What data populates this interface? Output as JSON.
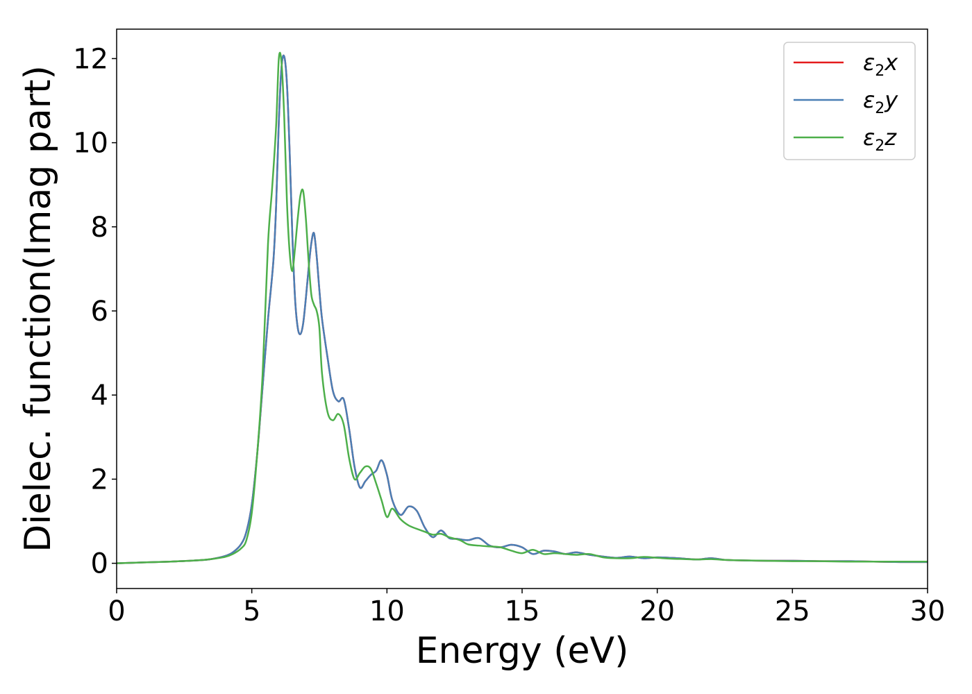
{
  "chart_data": {
    "type": "line",
    "title": "",
    "xlabel": "Energy (eV)",
    "ylabel": "Dielec. function(Imag part)",
    "xlim": [
      0,
      30
    ],
    "ylim": [
      -0.6,
      12.7
    ],
    "xticks": [
      0,
      5,
      10,
      15,
      20,
      25,
      30
    ],
    "xtick_labels": [
      "0",
      "5",
      "10",
      "15",
      "20",
      "25",
      "30"
    ],
    "yticks": [
      0,
      2,
      4,
      6,
      8,
      10,
      12
    ],
    "ytick_labels": [
      "0",
      "2",
      "4",
      "6",
      "8",
      "10",
      "12"
    ],
    "grid": false,
    "legend_position": "top-right",
    "series": [
      {
        "name": "ε2x",
        "legend_symbol": "ε",
        "legend_sub": "2",
        "legend_suffix": "x",
        "color": "#e41a1c",
        "x": [
          0,
          1,
          2,
          3,
          3.5,
          4,
          4.3,
          4.6,
          4.8,
          5.0,
          5.2,
          5.4,
          5.6,
          5.8,
          5.9,
          6.0,
          6.1,
          6.2,
          6.3,
          6.4,
          6.5,
          6.6,
          6.7,
          6.8,
          6.9,
          7.0,
          7.1,
          7.2,
          7.3,
          7.4,
          7.5,
          7.6,
          7.8,
          8.0,
          8.2,
          8.4,
          8.6,
          8.8,
          9.0,
          9.2,
          9.4,
          9.6,
          9.8,
          10.0,
          10.2,
          10.5,
          10.8,
          11.1,
          11.4,
          11.7,
          12.0,
          12.3,
          12.6,
          13.0,
          13.4,
          13.8,
          14.2,
          14.6,
          15.0,
          15.4,
          15.8,
          16.2,
          16.6,
          17.0,
          17.5,
          18.0,
          18.5,
          19.0,
          19.5,
          20.0,
          20.5,
          21.0,
          21.5,
          22.0,
          22.5,
          23.0,
          24.0,
          25.0,
          26.0,
          27.0,
          28.0,
          29.0,
          30.0
        ],
        "y": [
          0.0,
          0.02,
          0.04,
          0.07,
          0.1,
          0.17,
          0.26,
          0.45,
          0.75,
          1.4,
          2.6,
          4.2,
          5.8,
          7.2,
          8.5,
          10.5,
          11.8,
          12.05,
          11.4,
          9.8,
          7.8,
          6.3,
          5.6,
          5.45,
          5.7,
          6.3,
          7.0,
          7.6,
          7.85,
          7.3,
          6.5,
          5.8,
          4.9,
          4.1,
          3.85,
          3.9,
          3.2,
          2.3,
          1.8,
          1.95,
          2.1,
          2.2,
          2.45,
          2.1,
          1.5,
          1.15,
          1.35,
          1.25,
          0.85,
          0.62,
          0.78,
          0.6,
          0.58,
          0.55,
          0.6,
          0.42,
          0.38,
          0.44,
          0.38,
          0.22,
          0.3,
          0.28,
          0.22,
          0.26,
          0.2,
          0.16,
          0.13,
          0.16,
          0.12,
          0.14,
          0.13,
          0.11,
          0.09,
          0.12,
          0.08,
          0.07,
          0.06,
          0.06,
          0.05,
          0.05,
          0.04,
          0.03,
          0.03
        ]
      },
      {
        "name": "ε2y",
        "legend_symbol": "ε",
        "legend_sub": "2",
        "legend_suffix": "y",
        "color": "#4a7fb5",
        "x": [
          0,
          1,
          2,
          3,
          3.5,
          4,
          4.3,
          4.6,
          4.8,
          5.0,
          5.2,
          5.4,
          5.6,
          5.8,
          5.9,
          6.0,
          6.1,
          6.2,
          6.3,
          6.4,
          6.5,
          6.6,
          6.7,
          6.8,
          6.9,
          7.0,
          7.1,
          7.2,
          7.3,
          7.4,
          7.5,
          7.6,
          7.8,
          8.0,
          8.2,
          8.4,
          8.6,
          8.8,
          9.0,
          9.2,
          9.4,
          9.6,
          9.8,
          10.0,
          10.2,
          10.5,
          10.8,
          11.1,
          11.4,
          11.7,
          12.0,
          12.3,
          12.6,
          13.0,
          13.4,
          13.8,
          14.2,
          14.6,
          15.0,
          15.4,
          15.8,
          16.2,
          16.6,
          17.0,
          17.5,
          18.0,
          18.5,
          19.0,
          19.5,
          20.0,
          20.5,
          21.0,
          21.5,
          22.0,
          22.5,
          23.0,
          24.0,
          25.0,
          26.0,
          27.0,
          28.0,
          29.0,
          30.0
        ],
        "y": [
          0.0,
          0.02,
          0.04,
          0.07,
          0.1,
          0.17,
          0.26,
          0.45,
          0.75,
          1.4,
          2.6,
          4.2,
          5.8,
          7.2,
          8.5,
          10.5,
          11.8,
          12.05,
          11.4,
          9.8,
          7.8,
          6.3,
          5.6,
          5.45,
          5.7,
          6.3,
          7.0,
          7.6,
          7.85,
          7.3,
          6.5,
          5.8,
          4.9,
          4.1,
          3.85,
          3.9,
          3.2,
          2.3,
          1.8,
          1.95,
          2.1,
          2.2,
          2.45,
          2.1,
          1.5,
          1.15,
          1.35,
          1.25,
          0.85,
          0.62,
          0.78,
          0.6,
          0.58,
          0.55,
          0.6,
          0.42,
          0.38,
          0.44,
          0.38,
          0.22,
          0.3,
          0.28,
          0.22,
          0.26,
          0.2,
          0.16,
          0.13,
          0.16,
          0.12,
          0.14,
          0.13,
          0.11,
          0.09,
          0.12,
          0.08,
          0.07,
          0.06,
          0.06,
          0.05,
          0.05,
          0.04,
          0.03,
          0.03
        ]
      },
      {
        "name": "ε2z",
        "legend_symbol": "ε",
        "legend_sub": "2",
        "legend_suffix": "z",
        "color": "#4daf4a",
        "x": [
          0,
          1,
          2,
          3,
          3.5,
          4,
          4.3,
          4.6,
          4.8,
          5.0,
          5.2,
          5.4,
          5.6,
          5.75,
          5.9,
          6.0,
          6.1,
          6.2,
          6.3,
          6.4,
          6.5,
          6.6,
          6.7,
          6.8,
          6.9,
          7.0,
          7.1,
          7.2,
          7.3,
          7.4,
          7.5,
          7.6,
          7.8,
          8.0,
          8.2,
          8.4,
          8.6,
          8.8,
          9.0,
          9.2,
          9.4,
          9.6,
          9.8,
          10.0,
          10.2,
          10.5,
          10.8,
          11.1,
          11.4,
          11.7,
          12.0,
          12.3,
          12.7,
          13.0,
          13.4,
          13.8,
          14.2,
          14.6,
          15.0,
          15.4,
          15.8,
          16.2,
          16.6,
          17.0,
          17.5,
          18.0,
          18.5,
          19.0,
          19.5,
          20.0,
          20.5,
          21.0,
          21.5,
          22.0,
          22.5,
          23.0,
          24.0,
          25.0,
          26.0,
          27.0,
          28.0,
          29.0,
          30.0
        ],
        "y": [
          0.0,
          0.02,
          0.04,
          0.07,
          0.1,
          0.15,
          0.22,
          0.35,
          0.55,
          1.2,
          2.6,
          4.5,
          7.6,
          8.9,
          10.4,
          12.0,
          11.9,
          10.6,
          8.6,
          7.4,
          6.95,
          7.5,
          8.2,
          8.75,
          8.85,
          8.2,
          7.2,
          6.4,
          6.15,
          6.0,
          5.6,
          4.5,
          3.6,
          3.4,
          3.55,
          3.3,
          2.5,
          2.0,
          2.15,
          2.3,
          2.25,
          1.9,
          1.5,
          1.1,
          1.3,
          1.05,
          0.9,
          0.82,
          0.75,
          0.68,
          0.7,
          0.62,
          0.55,
          0.45,
          0.42,
          0.4,
          0.38,
          0.3,
          0.24,
          0.32,
          0.22,
          0.24,
          0.22,
          0.2,
          0.22,
          0.14,
          0.12,
          0.12,
          0.15,
          0.13,
          0.11,
          0.1,
          0.09,
          0.1,
          0.08,
          0.07,
          0.06,
          0.05,
          0.05,
          0.04,
          0.04,
          0.04,
          0.04
        ]
      }
    ]
  }
}
